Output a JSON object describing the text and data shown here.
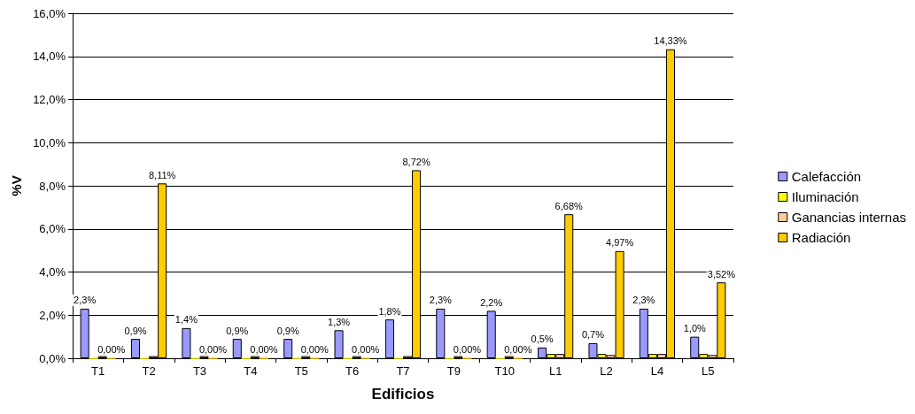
{
  "chart_data": {
    "type": "bar",
    "xlabel": "Edificios",
    "ylabel": "%V",
    "categories": [
      "T1",
      "T2",
      "T3",
      "T4",
      "T5",
      "T6",
      "T7",
      "T9",
      "T10",
      "L1",
      "L2",
      "L4",
      "L5"
    ],
    "series": [
      {
        "name": "Calefacción",
        "color": "#9999ff",
        "values": [
          2.3,
          0.9,
          1.4,
          0.9,
          0.9,
          1.3,
          1.8,
          2.3,
          2.2,
          0.5,
          0.7,
          2.3,
          1.0
        ],
        "value_labels": [
          "2,3%",
          "0,9%",
          "1,4%",
          "0,9%",
          "0,9%",
          "1,3%",
          "1,8%",
          "2,3%",
          "2,2%",
          "0,5%",
          "0,7%",
          "2,3%",
          "1,0%"
        ]
      },
      {
        "name": "Iluminación",
        "color": "#ffff00",
        "values": [
          0,
          0,
          0,
          0,
          0,
          0,
          0,
          0,
          0,
          0.2,
          0.2,
          0.2,
          0.2
        ]
      },
      {
        "name": "Ganancias internas",
        "color": "#ffcc99",
        "values": [
          0.1,
          0.1,
          0.1,
          0.1,
          0.1,
          0.1,
          0.1,
          0.1,
          0.1,
          0.2,
          0.15,
          0.2,
          0.15
        ]
      },
      {
        "name": "Radiación",
        "color": "#ffcc00",
        "values": [
          0,
          8.11,
          0,
          0,
          0,
          0,
          8.72,
          0,
          0,
          6.68,
          4.97,
          14.33,
          3.52
        ],
        "value_labels": [
          "0,00%",
          "8,11%",
          "0,00%",
          "0,00%",
          "0,00%",
          "0,00%",
          "8,72%",
          "0,00%",
          "0,00%",
          "6,68%",
          "4,97%",
          "14,33%",
          "3,52%"
        ]
      }
    ],
    "ylim": [
      0,
      16
    ],
    "yticks": [
      {
        "value": 0,
        "label": "0,0%"
      },
      {
        "value": 2,
        "label": "2,0%"
      },
      {
        "value": 4,
        "label": "4,0%"
      },
      {
        "value": 6,
        "label": "6,0%"
      },
      {
        "value": 8,
        "label": "8,0%"
      },
      {
        "value": 10,
        "label": "10,0%"
      },
      {
        "value": 12,
        "label": "12,0%"
      },
      {
        "value": 14,
        "label": "14,0%"
      },
      {
        "value": 16,
        "label": "16,0%"
      }
    ],
    "grid": "y",
    "legend": "right"
  }
}
